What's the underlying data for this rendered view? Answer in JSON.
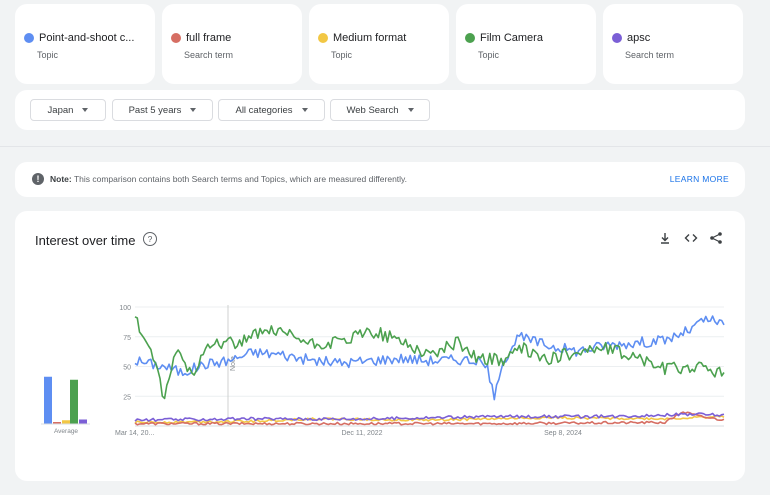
{
  "terms": [
    {
      "name": "Point-and-shoot c...",
      "type": "Topic",
      "color": "#5e8ef2"
    },
    {
      "name": "full frame",
      "type": "Search term",
      "color": "#d66e63"
    },
    {
      "name": "Medium format",
      "type": "Topic",
      "color": "#f2c744"
    },
    {
      "name": "Film Camera",
      "type": "Topic",
      "color": "#4ca14f"
    },
    {
      "name": "apsc",
      "type": "Search term",
      "color": "#7b5fd6"
    }
  ],
  "filters": {
    "region": "Japan",
    "period": "Past 5 years",
    "category": "All categories",
    "search_type": "Web Search"
  },
  "note": {
    "label": "Note:",
    "text": "This comparison contains both Search terms and Topics, which are measured differently.",
    "link": "LEARN MORE"
  },
  "chart": {
    "title": "Interest over time",
    "average_label": "Average",
    "marker_label": "Note"
  },
  "chart_data": {
    "type": "line",
    "title": "Interest over time",
    "ylim": [
      0,
      100
    ],
    "y_ticks": [
      25,
      50,
      75,
      100
    ],
    "x_tick_labels": [
      "Mar 14, 20...",
      "Dec 11, 2022",
      "Sep 8, 2024"
    ],
    "grid": true,
    "date_range": [
      "2021-03-14",
      "2026-03-08"
    ],
    "series": [
      {
        "name": "Point-and-shoot c...",
        "color": "#5e8ef2",
        "average": 63,
        "keypoints": [
          [
            0,
            55
          ],
          [
            0.05,
            50
          ],
          [
            0.08,
            45
          ],
          [
            0.12,
            52
          ],
          [
            0.16,
            55
          ],
          [
            0.2,
            62
          ],
          [
            0.25,
            60
          ],
          [
            0.3,
            55
          ],
          [
            0.35,
            53
          ],
          [
            0.4,
            55
          ],
          [
            0.45,
            57
          ],
          [
            0.5,
            55
          ],
          [
            0.55,
            56
          ],
          [
            0.58,
            55
          ],
          [
            0.6,
            48
          ],
          [
            0.61,
            20
          ],
          [
            0.62,
            50
          ],
          [
            0.65,
            75
          ],
          [
            0.7,
            68
          ],
          [
            0.75,
            63
          ],
          [
            0.8,
            68
          ],
          [
            0.85,
            70
          ],
          [
            0.9,
            72
          ],
          [
            0.94,
            80
          ],
          [
            0.97,
            90
          ],
          [
            1,
            85
          ]
        ]
      },
      {
        "name": "full frame",
        "color": "#d66e63",
        "average": 1,
        "keypoints": [
          [
            0,
            2
          ],
          [
            0.3,
            2
          ],
          [
            0.6,
            2
          ],
          [
            0.9,
            3
          ],
          [
            0.93,
            12
          ],
          [
            0.96,
            8
          ],
          [
            1,
            5
          ]
        ]
      },
      {
        "name": "Medium format",
        "color": "#f2c744",
        "average": 5,
        "keypoints": [
          [
            0,
            3
          ],
          [
            0.2,
            4
          ],
          [
            0.3,
            6
          ],
          [
            0.5,
            5
          ],
          [
            0.7,
            7
          ],
          [
            0.9,
            6
          ],
          [
            1,
            8
          ]
        ]
      },
      {
        "name": "Film Camera",
        "color": "#4ca14f",
        "average": 59,
        "keypoints": [
          [
            0,
            90
          ],
          [
            0.03,
            60
          ],
          [
            0.05,
            20
          ],
          [
            0.07,
            65
          ],
          [
            0.1,
            40
          ],
          [
            0.12,
            70
          ],
          [
            0.18,
            70
          ],
          [
            0.22,
            80
          ],
          [
            0.27,
            75
          ],
          [
            0.3,
            68
          ],
          [
            0.35,
            70
          ],
          [
            0.4,
            80
          ],
          [
            0.45,
            72
          ],
          [
            0.5,
            60
          ],
          [
            0.55,
            70
          ],
          [
            0.58,
            58
          ],
          [
            0.62,
            55
          ],
          [
            0.66,
            65
          ],
          [
            0.7,
            55
          ],
          [
            0.75,
            63
          ],
          [
            0.8,
            65
          ],
          [
            0.85,
            58
          ],
          [
            0.9,
            48
          ],
          [
            0.95,
            50
          ],
          [
            1,
            45
          ]
        ]
      },
      {
        "name": "apsc",
        "color": "#7b5fd6",
        "average": 6,
        "keypoints": [
          [
            0,
            5
          ],
          [
            0.2,
            6
          ],
          [
            0.4,
            6
          ],
          [
            0.6,
            8
          ],
          [
            0.8,
            8
          ],
          [
            0.95,
            10
          ],
          [
            1,
            9
          ]
        ]
      }
    ]
  }
}
